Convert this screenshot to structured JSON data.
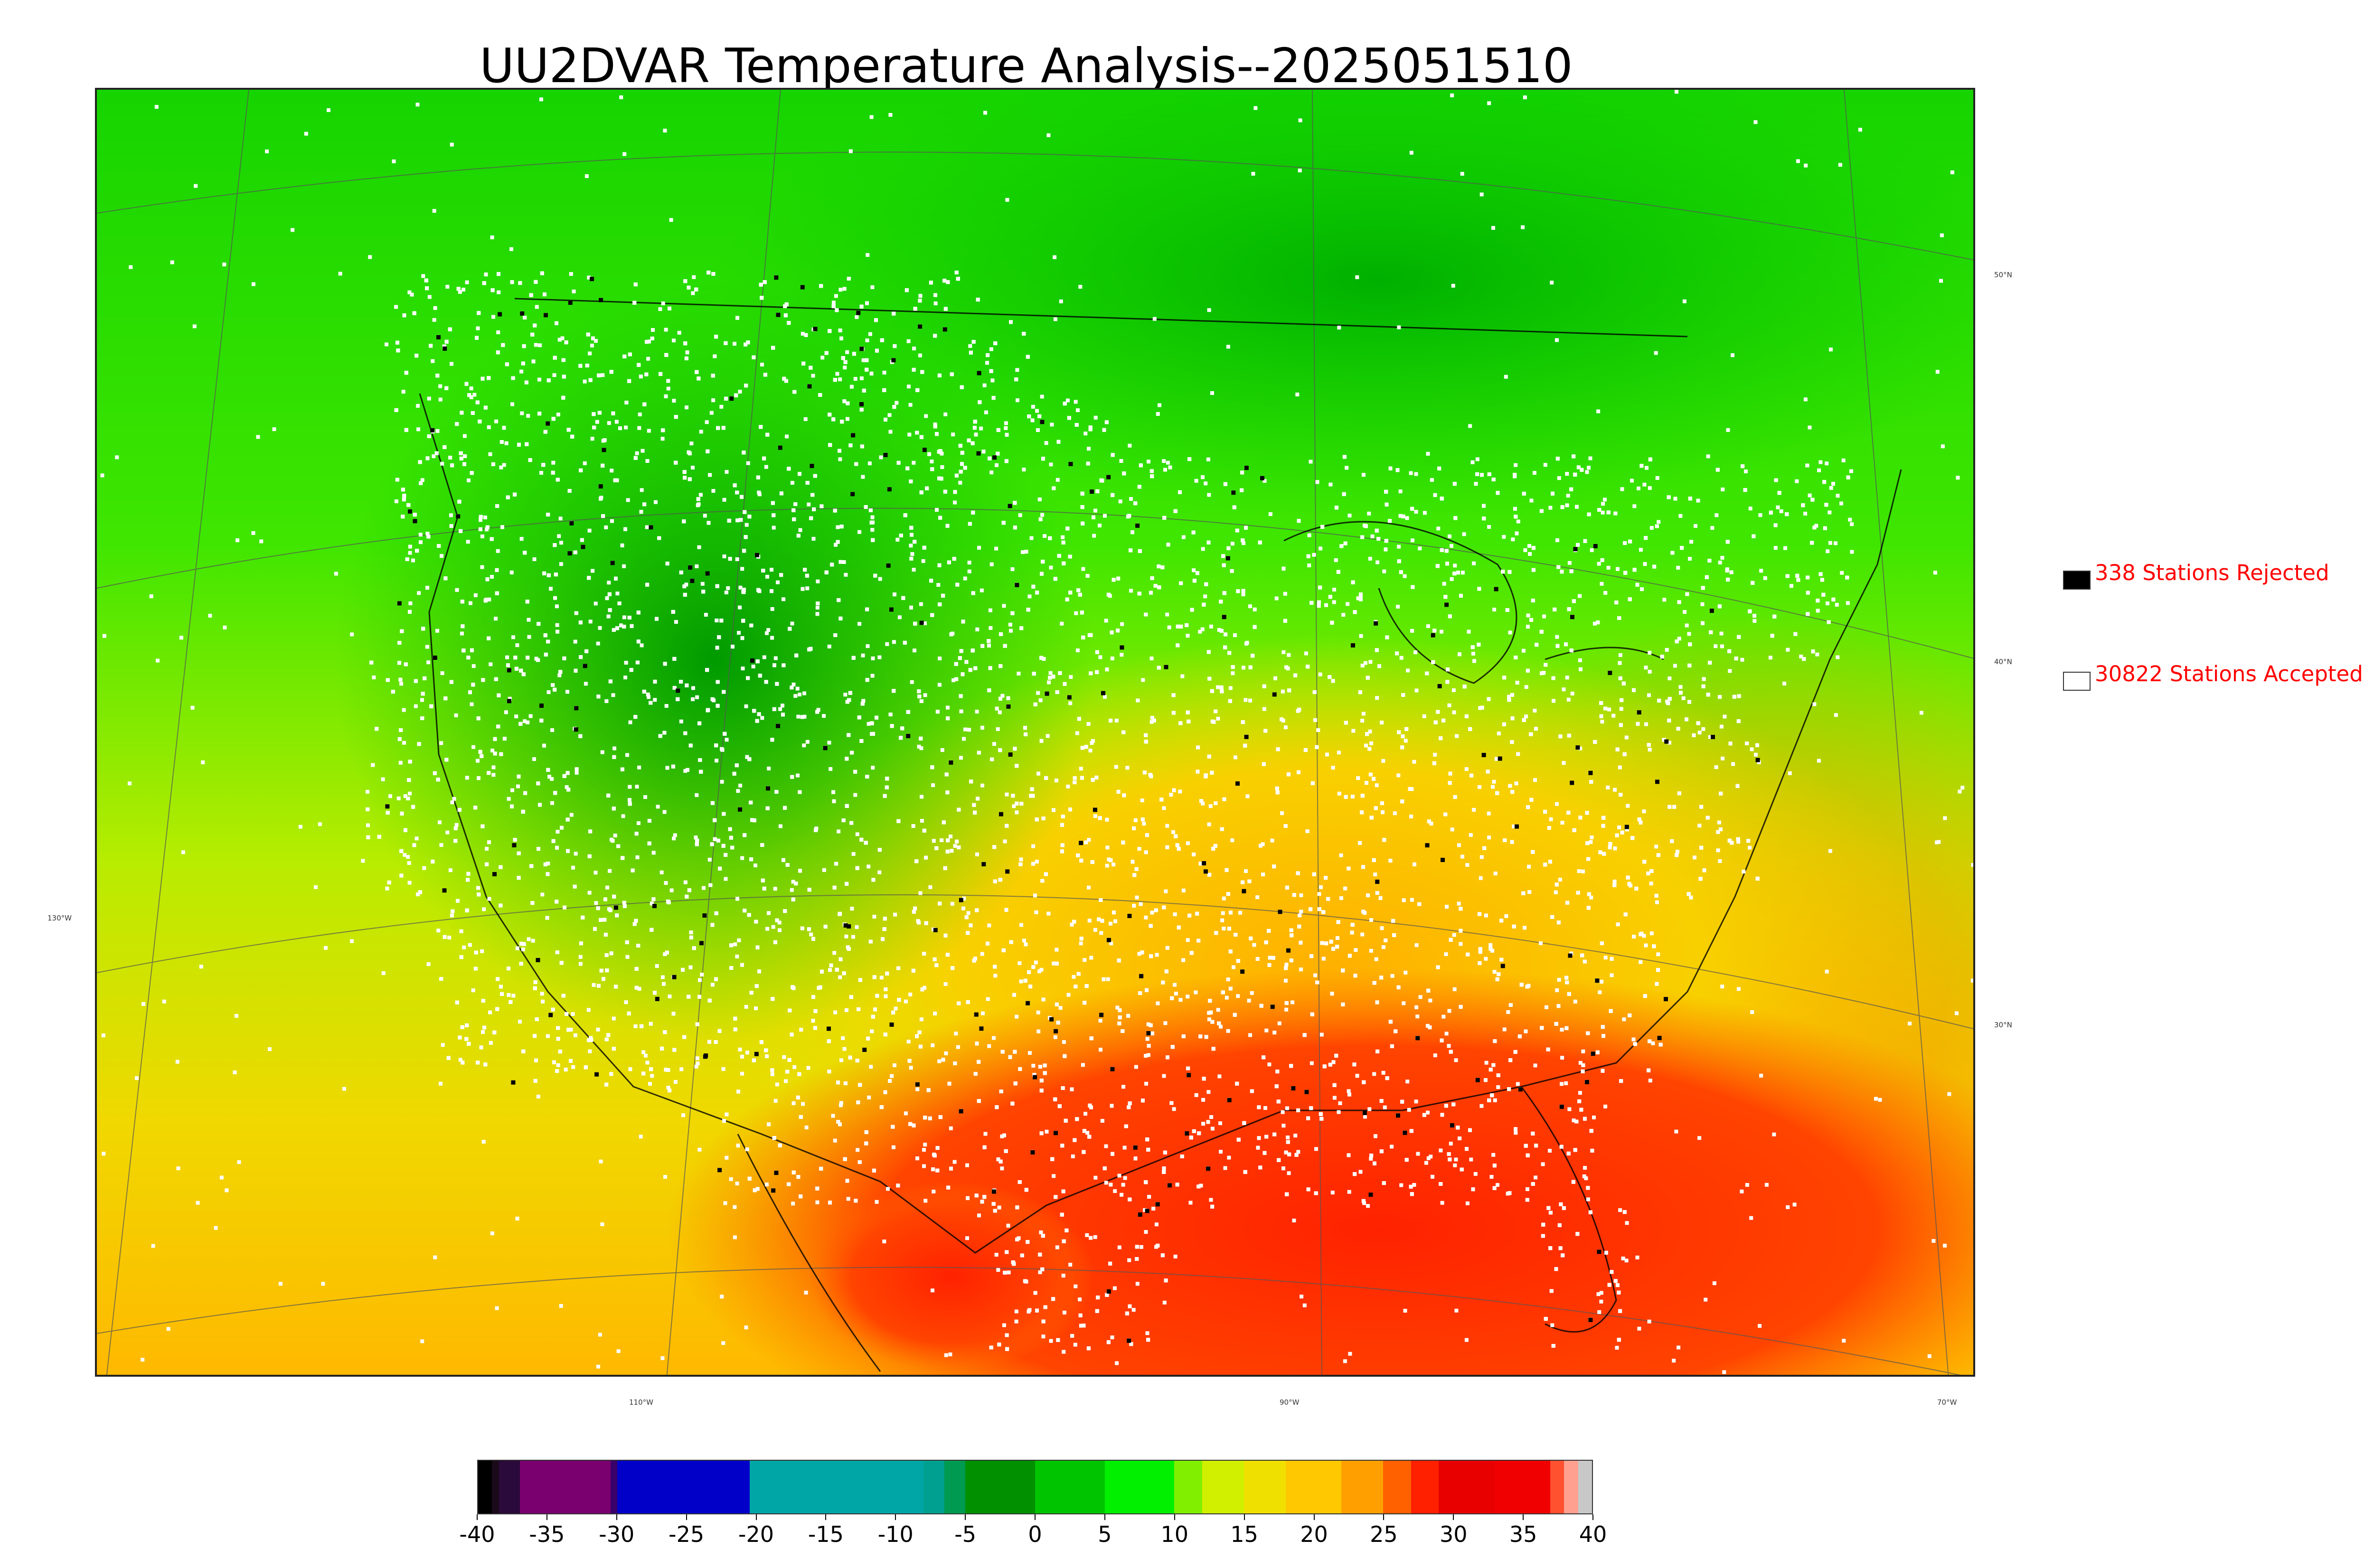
{
  "title": "UU2DVAR Temperature Analysis--2025051510",
  "map": {
    "lat_labels": [
      "50°N",
      "40°N",
      "30°N"
    ],
    "lon_labels": [
      "130°W",
      "110°W",
      "90°W",
      "70°W"
    ]
  },
  "legend": {
    "rejected_text": "338 Stations Rejected",
    "accepted_text": "30822 Stations Accepted",
    "rejected_count": 338,
    "accepted_count": 30822,
    "rejected_color": "#000000",
    "accepted_color": "#ffffff"
  },
  "colorbar": {
    "ticks": [
      "-40",
      "-35",
      "-30",
      "-25",
      "-20",
      "-15",
      "-10",
      "-5",
      "0",
      "5",
      "10",
      "15",
      "20",
      "25",
      "30",
      "35",
      "40"
    ],
    "range": [
      -40,
      40
    ],
    "stops": [
      {
        "from": -40,
        "to": -39,
        "color": "#000000"
      },
      {
        "from": -39,
        "to": -38.5,
        "color": "#1a0a1a"
      },
      {
        "from": -38.5,
        "to": -37,
        "color": "#2a0a3a"
      },
      {
        "from": -37,
        "to": -30.5,
        "color": "#7a006f"
      },
      {
        "from": -30.5,
        "to": -30,
        "color": "#3a006a"
      },
      {
        "from": -30,
        "to": -20.5,
        "color": "#0000c8"
      },
      {
        "from": -20.5,
        "to": -8,
        "color": "#00a6a6"
      },
      {
        "from": -8,
        "to": -6.5,
        "color": "#00a090"
      },
      {
        "from": -6.5,
        "to": -5,
        "color": "#009a50"
      },
      {
        "from": -5,
        "to": 0,
        "color": "#009000"
      },
      {
        "from": 0,
        "to": 5,
        "color": "#00c400"
      },
      {
        "from": 5,
        "to": 10,
        "color": "#00f000"
      },
      {
        "from": 10,
        "to": 12,
        "color": "#80f000"
      },
      {
        "from": 12,
        "to": 15,
        "color": "#d0f000"
      },
      {
        "from": 15,
        "to": 18,
        "color": "#f0e000"
      },
      {
        "from": 18,
        "to": 22,
        "color": "#ffc800"
      },
      {
        "from": 22,
        "to": 25,
        "color": "#ffa000"
      },
      {
        "from": 25,
        "to": 27,
        "color": "#ff6000"
      },
      {
        "from": 27,
        "to": 29,
        "color": "#ff2000"
      },
      {
        "from": 29,
        "to": 33,
        "color": "#e80000"
      },
      {
        "from": 33,
        "to": 37,
        "color": "#f00000"
      },
      {
        "from": 37,
        "to": 38,
        "color": "#ff5030"
      },
      {
        "from": 38,
        "to": 39,
        "color": "#ffa090"
      },
      {
        "from": 39,
        "to": 40,
        "color": "#c8c8c8"
      }
    ]
  }
}
